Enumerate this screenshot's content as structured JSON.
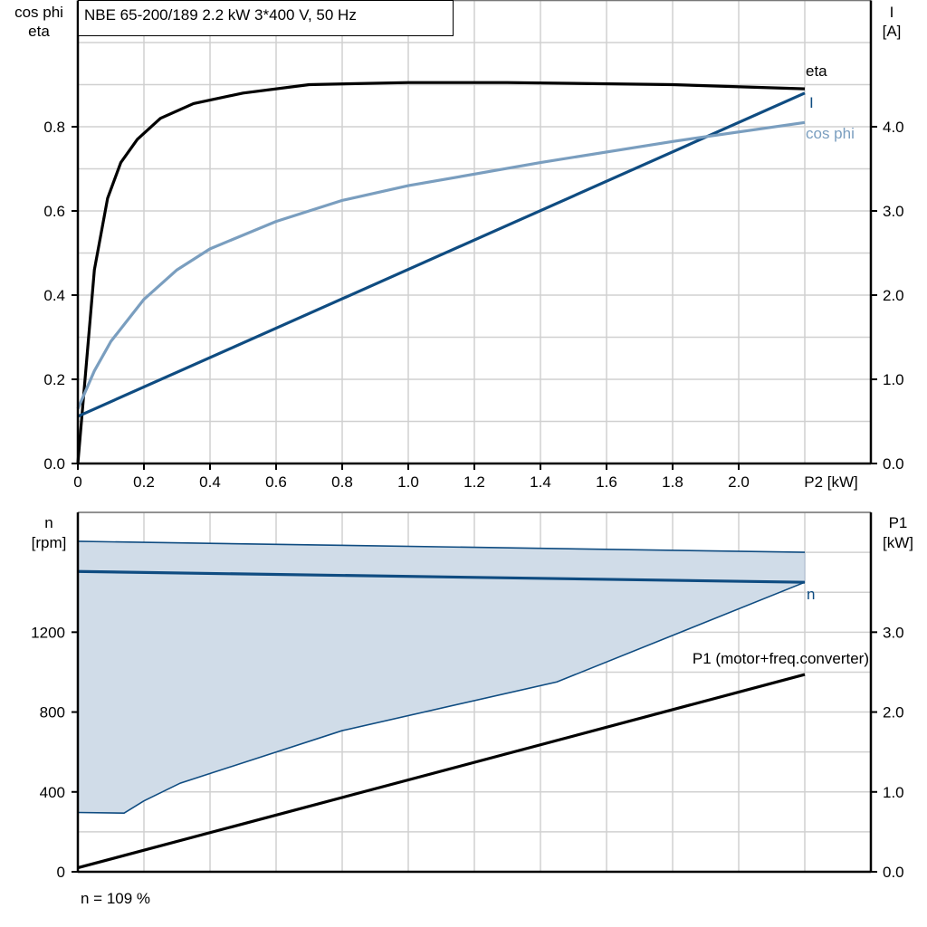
{
  "colors": {
    "eta": "#000000",
    "current": "#0f4c81",
    "cos_phi": "#7a9ebf",
    "speed": "#0f4c81",
    "speed_fill": "#d0dce8",
    "p1": "#000000",
    "grid": "#d0d0d0"
  },
  "chart_data": [
    {
      "type": "line",
      "title": "NBE 65-200/189   2.2 kW   3*400 V, 50 Hz",
      "xlabel": "P2 [kW]",
      "ylabel": [
        "cos phi",
        "eta"
      ],
      "y2label": [
        "I",
        "[A]"
      ],
      "xlim": [
        0,
        2.4
      ],
      "ylim": [
        0,
        1.1
      ],
      "y2lim": [
        0,
        5.5
      ],
      "grid": true,
      "x_ticks": [
        "0",
        "0.2",
        "0.4",
        "0.6",
        "0.8",
        "1.0",
        "1.2",
        "1.4",
        "1.6",
        "1.8",
        "2.0"
      ],
      "y_ticks": [
        "0.0",
        "0.2",
        "0.4",
        "0.6",
        "0.8"
      ],
      "y2_ticks": [
        "0.0",
        "1.0",
        "2.0",
        "3.0",
        "4.0"
      ],
      "series": [
        {
          "name": "eta",
          "axis": "left",
          "color_key": "eta",
          "x": [
            0,
            0.05,
            0.09,
            0.13,
            0.18,
            0.25,
            0.35,
            0.5,
            0.7,
            1.0,
            1.3,
            1.8,
            2.2
          ],
          "y": [
            0,
            0.46,
            0.63,
            0.715,
            0.77,
            0.82,
            0.855,
            0.88,
            0.9,
            0.905,
            0.905,
            0.9,
            0.89
          ]
        },
        {
          "name": "I",
          "axis": "right",
          "color_key": "current",
          "x": [
            0,
            2.2
          ],
          "y": [
            0.56,
            4.4
          ]
        },
        {
          "name": "cos phi",
          "axis": "left",
          "color_key": "cos_phi",
          "x": [
            0,
            0.05,
            0.1,
            0.15,
            0.2,
            0.3,
            0.4,
            0.6,
            0.8,
            1.0,
            1.4,
            1.8,
            2.2
          ],
          "y": [
            0.13,
            0.22,
            0.29,
            0.34,
            0.39,
            0.46,
            0.51,
            0.575,
            0.625,
            0.66,
            0.715,
            0.765,
            0.81
          ]
        }
      ]
    },
    {
      "type": "line",
      "xlim": [
        0,
        2.4
      ],
      "ylabel": [
        "n",
        "[rpm]"
      ],
      "y2label": [
        "P1",
        "[kW]"
      ],
      "ylim": [
        0,
        1800
      ],
      "y2lim": [
        0,
        4.5
      ],
      "grid": true,
      "y_ticks": [
        "0",
        "400",
        "800",
        "1200"
      ],
      "y2_ticks": [
        "0.0",
        "1.0",
        "2.0",
        "3.0"
      ],
      "speed_range": {
        "max": {
          "x": [
            0,
            2.2
          ],
          "y": [
            1655,
            1600
          ]
        },
        "min": {
          "x": [
            0,
            0.14,
            0.2,
            0.31,
            0.8,
            1.45,
            2.2
          ],
          "y": [
            297,
            294,
            355,
            444,
            707,
            951,
            1450
          ]
        }
      },
      "series": [
        {
          "name": "n",
          "axis": "left",
          "color_key": "speed",
          "x": [
            0,
            2.2
          ],
          "y": [
            1504,
            1450
          ]
        },
        {
          "name": "P1 (motor+freq.converter)",
          "axis": "right",
          "color_key": "p1",
          "x": [
            0,
            2.2
          ],
          "y": [
            0.05,
            2.47
          ]
        }
      ],
      "footer": "n = 109 %"
    }
  ]
}
